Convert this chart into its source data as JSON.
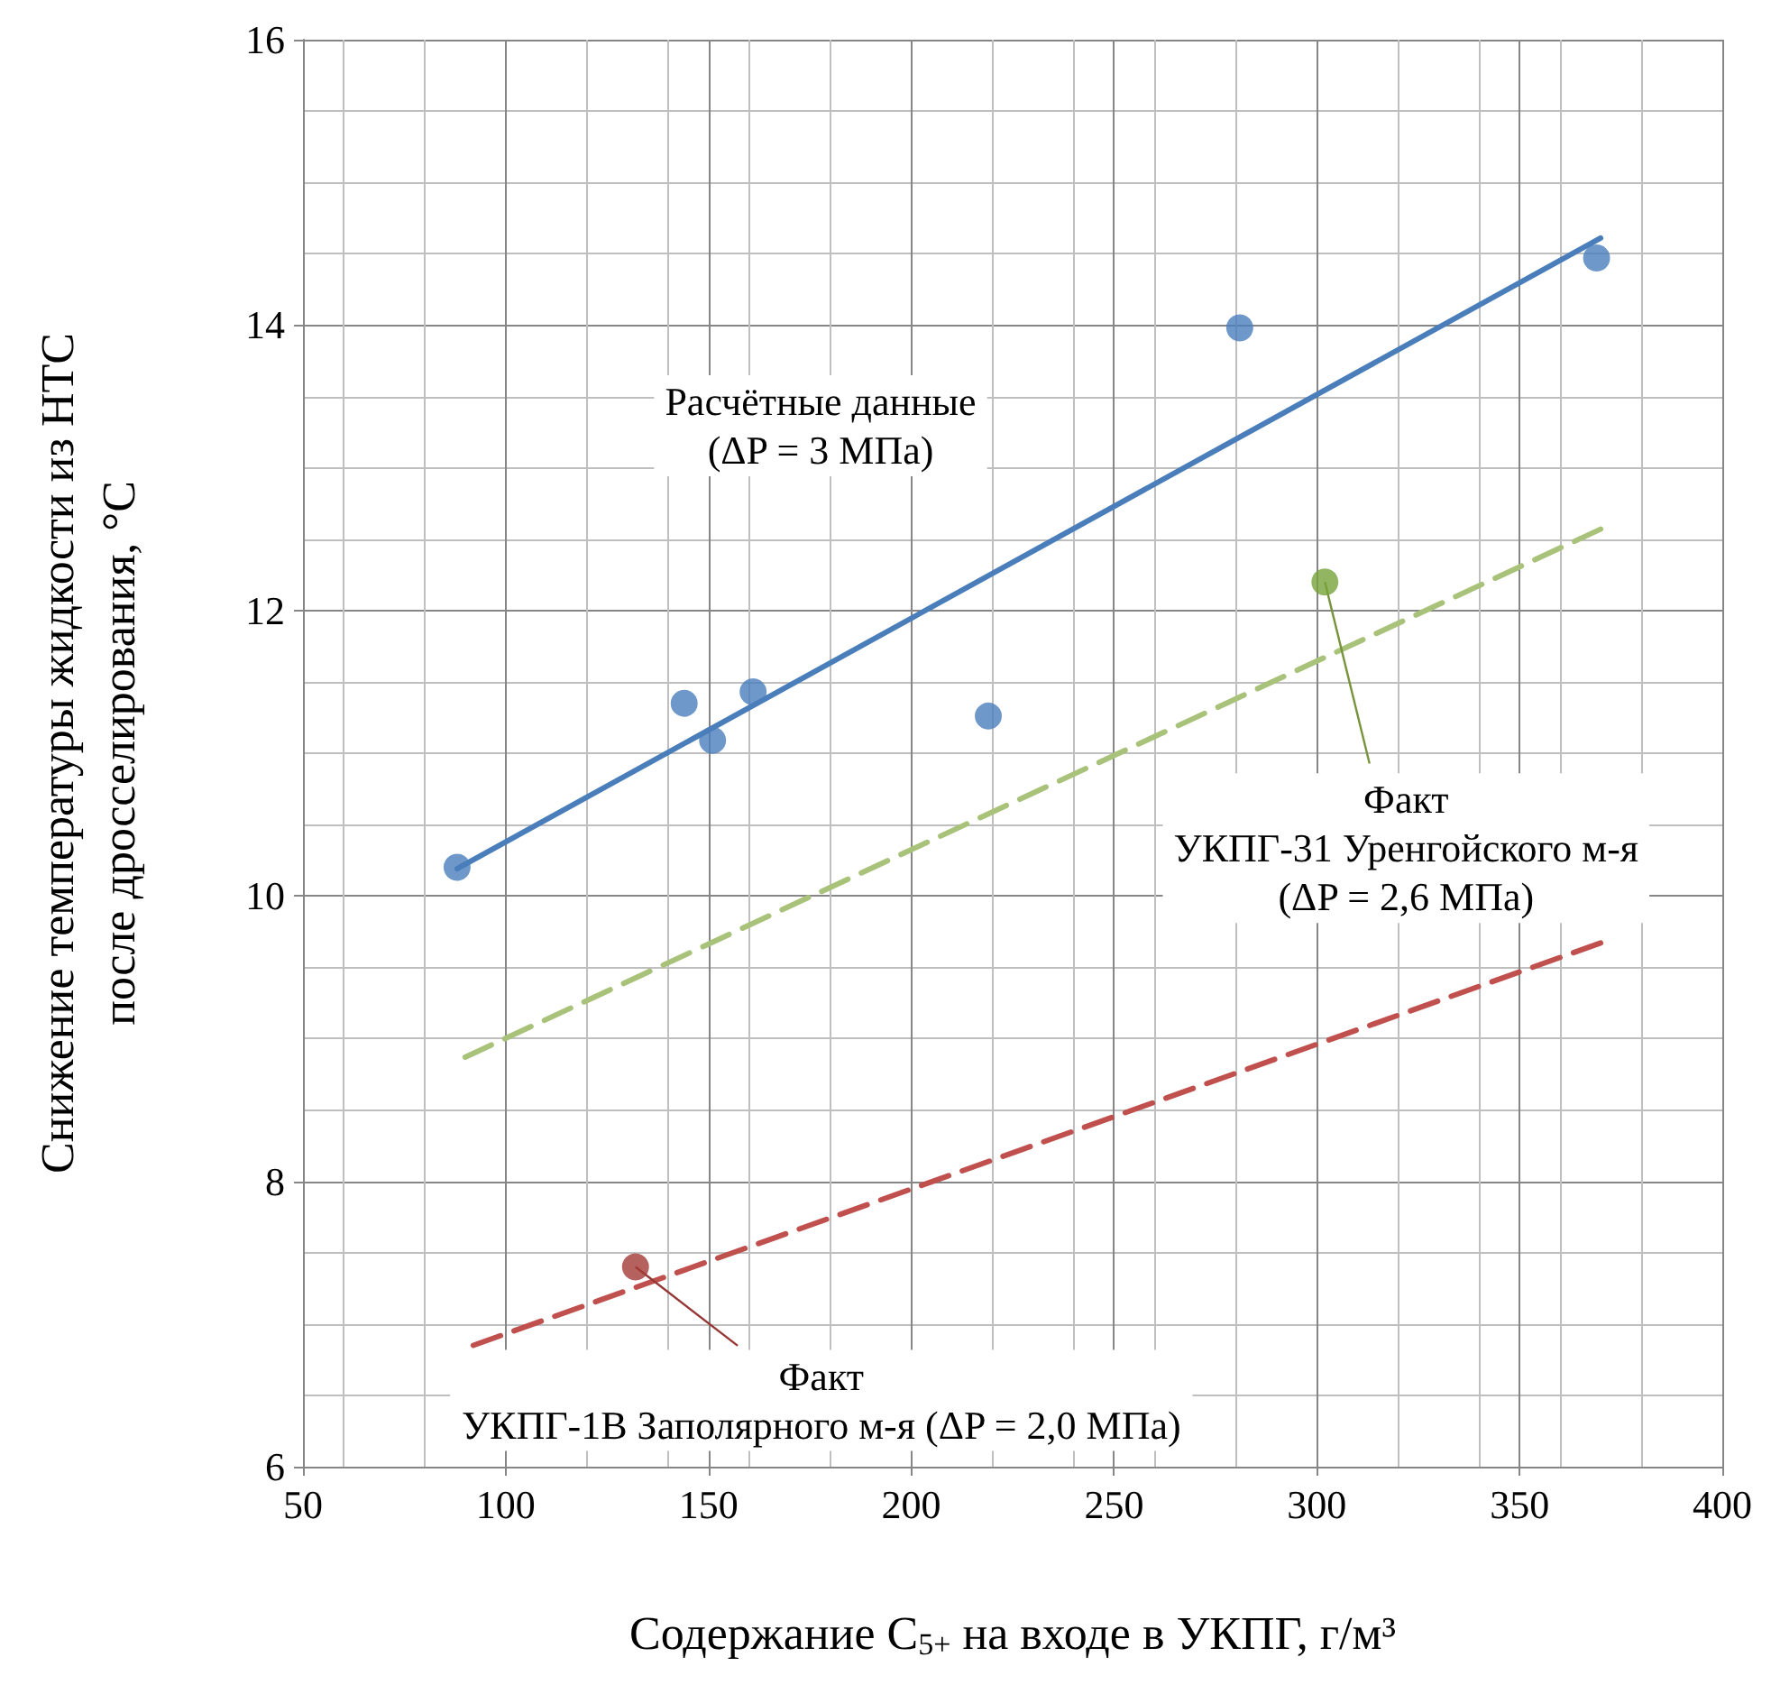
{
  "chart_data": {
    "type": "scatter",
    "xlabel": "Содержание C$_{5+}$ на входе в УКПГ, г/м³",
    "ylabel": "Снижение температуры жидкости из НТС\nпосле дросселирования, °C",
    "xlim": [
      50,
      400
    ],
    "xticks": [
      50,
      100,
      150,
      200,
      250,
      300,
      350,
      400
    ],
    "ylim": [
      6,
      16
    ],
    "yticks": [
      6,
      8,
      10,
      12,
      14,
      16
    ],
    "grid": true,
    "series": [
      {
        "type": "scatter",
        "color": "#4a7ebb",
        "marker": "circle",
        "x": [
          88,
          144,
          151,
          161,
          219,
          281,
          369
        ],
        "values": [
          10.2,
          11.35,
          11.09,
          11.43,
          11.26,
          13.98,
          14.47
        ]
      },
      {
        "type": "line",
        "color": "#4a7ebb",
        "marker": "none",
        "line_style": "solid",
        "x": [
          88,
          370
        ],
        "values": [
          10.19,
          14.61
        ]
      },
      {
        "type": "scatter",
        "color": "#77a33a",
        "marker": "circle",
        "x": [
          302
        ],
        "values": [
          12.2
        ]
      },
      {
        "type": "line",
        "color": "#a9c27a",
        "marker": "none",
        "line_style": "dashed",
        "x": [
          90,
          370
        ],
        "values": [
          8.87,
          12.57
        ]
      },
      {
        "type": "scatter",
        "color": "#a23b37",
        "marker": "circle",
        "x": [
          132
        ],
        "values": [
          7.4
        ]
      },
      {
        "type": "line",
        "color": "#c0504d",
        "marker": "none",
        "line_style": "dashed",
        "x": [
          92,
          370
        ],
        "values": [
          6.85,
          9.67
        ]
      }
    ],
    "annotations": [
      "Расчётные данные\n(ΔP = 3 МПа)",
      {
        "text": "Факт\nУКПГ-31 Уренгойского м-я\n(ΔP = 2,6 МПа)",
        "x": 302,
        "y": 12.2
      },
      {
        "text": "Факт\nУКПГ-1В Заполярного м-я (ΔP = 2,0 МПа)",
        "x": 132,
        "y": 7.4
      }
    ]
  }
}
